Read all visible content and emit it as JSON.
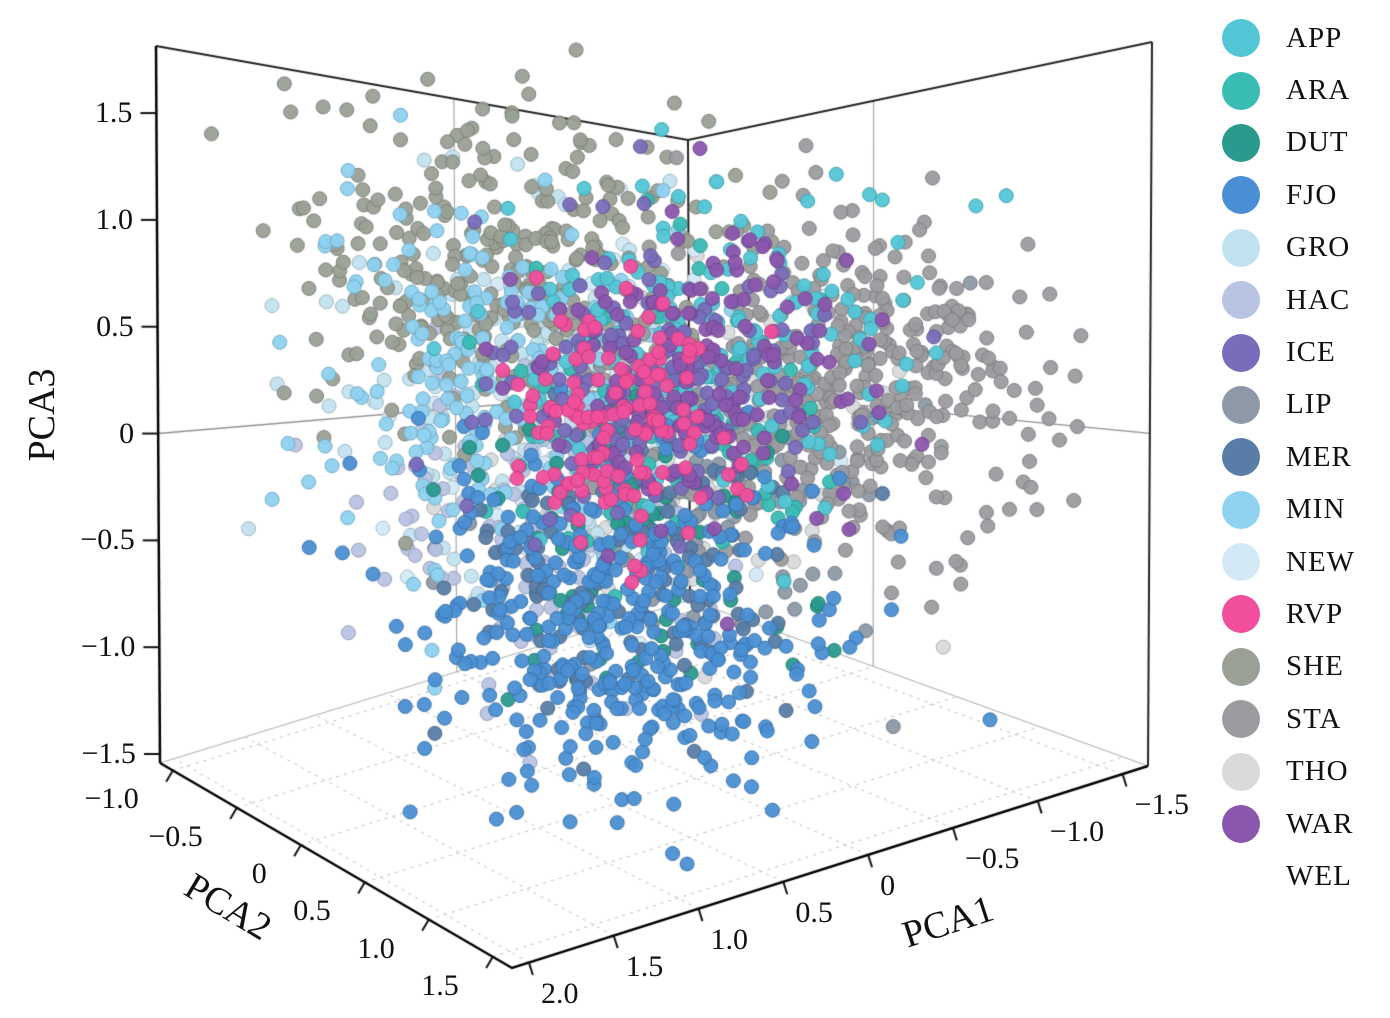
{
  "figure": {
    "kind": "3d-pca-scatter",
    "background": "#ffffff"
  },
  "chart_data": {
    "type": "scatter",
    "projection": "3d",
    "title": "",
    "axes": {
      "pca1": {
        "label": "PCA1",
        "tick_labels": [
          "2.0",
          "1.5",
          "1.0",
          "0.5",
          "0",
          "−0.5",
          "−1.0",
          "−1.5"
        ],
        "tick_values": [
          2.0,
          1.5,
          1.0,
          0.5,
          0,
          -0.5,
          -1.0,
          -1.5
        ],
        "range": [
          -1.65,
          2.1
        ]
      },
      "pca2": {
        "label": "PCA2",
        "tick_labels": [
          "−1.0",
          "−0.5",
          "0",
          "0.5",
          "1.0",
          "1.5"
        ],
        "tick_values": [
          -1.0,
          -0.5,
          0,
          0.5,
          1.0,
          1.5
        ],
        "range": [
          -1.1,
          1.65
        ]
      },
      "pca3": {
        "label": "PCA3",
        "tick_labels": [
          "1.5",
          "1.0",
          "0.5",
          "0",
          "−0.5",
          "−1.0",
          "−1.5"
        ],
        "tick_values": [
          1.5,
          1.0,
          0.5,
          0,
          -0.5,
          -1.0,
          -1.5
        ],
        "range": [
          -1.542,
          1.814
        ]
      }
    },
    "legend": {
      "position": "right",
      "entries": [
        "APP",
        "ARA",
        "DUT",
        "FJO",
        "GRO",
        "HAC",
        "ICE",
        "LIP",
        "MER",
        "MIN",
        "NEW",
        "RVP",
        "SHE",
        "STA",
        "THO",
        "WAR",
        "WEL"
      ]
    },
    "grid": {
      "zero_lines": true,
      "floor_dashed": true
    },
    "series": [
      {
        "name": "APP",
        "color": "#53c6d6",
        "n": 170,
        "center": [
          -0.15,
          0.35,
          0.4
        ],
        "sd": [
          0.5,
          0.5,
          0.42
        ]
      },
      {
        "name": "ARA",
        "color": "#39bcb4",
        "n": 90,
        "center": [
          0.05,
          0.3,
          0.1
        ],
        "sd": [
          0.45,
          0.4,
          0.4
        ]
      },
      {
        "name": "DUT",
        "color": "#2a9a8e",
        "n": 70,
        "center": [
          0.25,
          0.35,
          -0.45
        ],
        "sd": [
          0.4,
          0.35,
          0.35
        ]
      },
      {
        "name": "FJO",
        "color": "#4a8fd3",
        "n": 420,
        "center": [
          0.55,
          0.55,
          -0.75
        ],
        "sd": [
          0.5,
          0.5,
          0.38
        ]
      },
      {
        "name": "GRO",
        "color": "#c2e1ef",
        "n": 140,
        "center": [
          0.55,
          -0.25,
          0.2
        ],
        "sd": [
          0.5,
          0.45,
          0.45
        ]
      },
      {
        "name": "HAC",
        "color": "#b9c3e3",
        "n": 140,
        "center": [
          0.55,
          0.0,
          -0.35
        ],
        "sd": [
          0.5,
          0.4,
          0.4
        ]
      },
      {
        "name": "ICE",
        "color": "#7a6cba",
        "n": 160,
        "center": [
          0.0,
          0.25,
          0.3
        ],
        "sd": [
          0.4,
          0.38,
          0.35
        ]
      },
      {
        "name": "LIP",
        "color": "#8d99a7",
        "n": 110,
        "center": [
          0.0,
          0.45,
          -0.15
        ],
        "sd": [
          0.5,
          0.45,
          0.4
        ]
      },
      {
        "name": "MER",
        "color": "#5a7da7",
        "n": 130,
        "center": [
          0.35,
          0.3,
          -0.55
        ],
        "sd": [
          0.45,
          0.4,
          0.35
        ]
      },
      {
        "name": "MIN",
        "color": "#8ed2f0",
        "n": 220,
        "center": [
          0.65,
          -0.35,
          0.35
        ],
        "sd": [
          0.5,
          0.45,
          0.45
        ]
      },
      {
        "name": "NEW",
        "color": "#d3e9f6",
        "n": 90,
        "center": [
          0.4,
          0.1,
          0.1
        ],
        "sd": [
          0.5,
          0.45,
          0.4
        ]
      },
      {
        "name": "RVP",
        "color": "#f14f9c",
        "n": 130,
        "center": [
          0.3,
          0.2,
          0.1
        ],
        "sd": [
          0.28,
          0.25,
          0.3
        ]
      },
      {
        "name": "SHE",
        "color": "#9aa095",
        "n": 380,
        "center": [
          0.55,
          -0.35,
          0.8
        ],
        "sd": [
          0.55,
          0.5,
          0.42
        ]
      },
      {
        "name": "STA",
        "color": "#9c9ca0",
        "n": 420,
        "center": [
          -0.75,
          0.75,
          0.25
        ],
        "sd": [
          0.5,
          0.45,
          0.42
        ]
      },
      {
        "name": "THO",
        "color": "#d8dadb",
        "n": 130,
        "center": [
          0.1,
          0.45,
          0.05
        ],
        "sd": [
          0.45,
          0.4,
          0.35
        ]
      },
      {
        "name": "WAR",
        "color": "#8b57ae",
        "n": 160,
        "center": [
          -0.15,
          0.3,
          0.3
        ],
        "sd": [
          0.42,
          0.4,
          0.35
        ]
      },
      {
        "name": "WEL",
        "color": "#ffffff",
        "n": 0,
        "center": [
          0,
          0,
          0
        ],
        "sd": [
          0.3,
          0.3,
          0.3
        ]
      }
    ],
    "draw_order": [
      "THO",
      "NEW",
      "GRO",
      "LIP",
      "HAC",
      "SHE",
      "MIN",
      "STA",
      "ARA",
      "DUT",
      "MER",
      "APP",
      "FJO",
      "ICE",
      "WAR",
      "RVP",
      "WEL"
    ]
  },
  "render": {
    "corners": {
      "c000": [
        690,
        600
      ],
      "c100": [
        160,
        763
      ],
      "c110": [
        512,
        968
      ],
      "c010": [
        1148,
        766
      ],
      "c001": [
        688,
        140
      ],
      "c101": [
        156,
        46
      ],
      "c111": [
        600,
        -20
      ],
      "c011": [
        1152,
        42
      ]
    },
    "marker_radius": 7,
    "seed": 1234,
    "edge_color": "#222222",
    "grid_color": "#aaaaaa",
    "dash_color": "#bbbbbb"
  }
}
